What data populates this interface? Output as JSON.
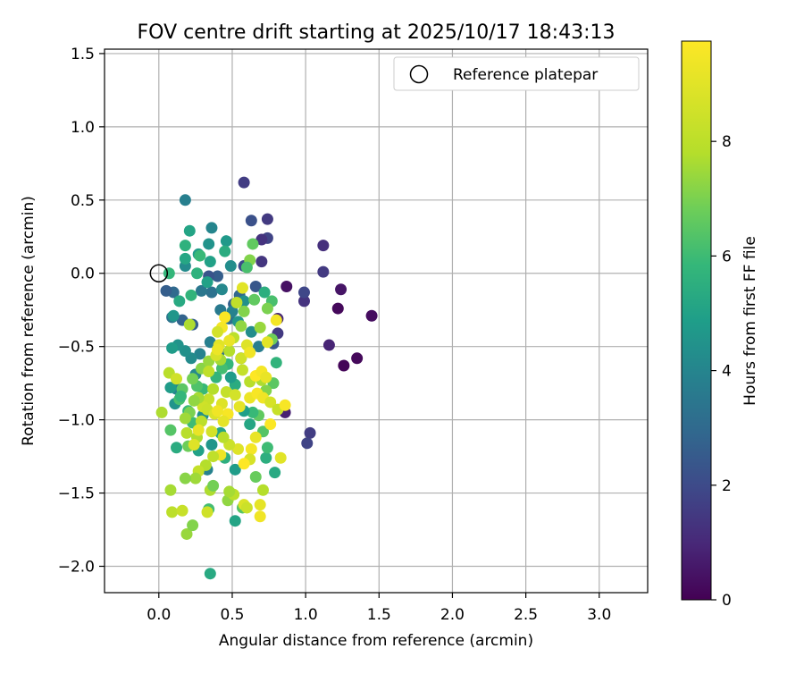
{
  "chart_data": {
    "type": "scatter",
    "title": "FOV centre drift starting at 2025/10/17 18:43:13",
    "xlabel": "Angular distance from reference (arcmin)",
    "ylabel": "Rotation from reference (arcmin)",
    "xlim": [
      -0.37,
      3.33
    ],
    "ylim": [
      -2.18,
      1.53
    ],
    "xticks": [
      0.0,
      0.5,
      1.0,
      1.5,
      2.0,
      2.5,
      3.0
    ],
    "xtick_labels": [
      "0.0",
      "0.5",
      "1.0",
      "1.5",
      "2.0",
      "2.5",
      "3.0"
    ],
    "yticks": [
      1.5,
      1.0,
      0.5,
      0.0,
      -0.5,
      -1.0,
      -1.5,
      -2.0
    ],
    "ytick_labels": [
      "1.5",
      "1.0",
      "0.5",
      "0.0",
      "−0.5",
      "−1.0",
      "−1.5",
      "−2.0"
    ],
    "grid": true,
    "legend": {
      "placement": "top-right",
      "entries": [
        "Reference platepar"
      ]
    },
    "colorbar": {
      "label": "Hours from first FF file",
      "range": [
        0,
        9.75
      ],
      "colormap": "viridis",
      "ticks": [
        0,
        2,
        4,
        6,
        8
      ],
      "tick_labels": [
        "0",
        "2",
        "4",
        "6",
        "8"
      ]
    },
    "reference_point": {
      "x": 0.0,
      "y": 0.0
    },
    "point_columns": [
      "x",
      "y",
      "hours"
    ],
    "points": [
      [
        1.45,
        -0.29,
        0.3
      ],
      [
        1.35,
        -0.58,
        0.2
      ],
      [
        1.26,
        -0.63,
        0.1
      ],
      [
        1.22,
        -0.24,
        0.2
      ],
      [
        1.24,
        -0.11,
        0.5
      ],
      [
        1.16,
        -0.49,
        0.9
      ],
      [
        1.12,
        0.19,
        1.2
      ],
      [
        1.12,
        0.01,
        1.5
      ],
      [
        0.87,
        -0.09,
        0.4
      ],
      [
        0.86,
        -0.95,
        0.8
      ],
      [
        0.99,
        -0.19,
        1.3
      ],
      [
        1.03,
        -1.09,
        1.6
      ],
      [
        1.01,
        -1.16,
        1.8
      ],
      [
        0.99,
        -0.13,
        1.9
      ],
      [
        0.58,
        0.62,
        1.6
      ],
      [
        0.74,
        0.37,
        1.5
      ],
      [
        0.74,
        0.24,
        1.8
      ],
      [
        0.7,
        0.23,
        1.3
      ],
      [
        0.63,
        0.36,
        2.2
      ],
      [
        0.58,
        0.05,
        2.0
      ],
      [
        0.7,
        0.08,
        1.4
      ],
      [
        0.81,
        -0.31,
        1.0
      ],
      [
        0.81,
        -0.41,
        1.5
      ],
      [
        0.78,
        -0.48,
        2.4
      ],
      [
        0.66,
        -0.09,
        2.4
      ],
      [
        0.55,
        -0.15,
        2.9
      ],
      [
        0.51,
        -0.21,
        2.7
      ],
      [
        0.48,
        -0.31,
        3.2
      ],
      [
        0.4,
        -0.02,
        2.6
      ],
      [
        0.36,
        -0.13,
        3.3
      ],
      [
        0.34,
        -0.02,
        2.3
      ],
      [
        0.29,
        -0.12,
        3.5
      ],
      [
        0.23,
        -0.35,
        2.6
      ],
      [
        0.16,
        -0.32,
        2.8
      ],
      [
        0.1,
        -0.13,
        3.0
      ],
      [
        0.05,
        -0.12,
        2.6
      ],
      [
        0.09,
        -0.3,
        3.4
      ],
      [
        0.18,
        0.5,
        3.8
      ],
      [
        0.36,
        0.31,
        4.0
      ],
      [
        0.46,
        0.22,
        4.7
      ],
      [
        0.49,
        0.05,
        4.3
      ],
      [
        0.35,
        0.08,
        5.0
      ],
      [
        0.27,
        0.13,
        4.8
      ],
      [
        0.18,
        0.05,
        4.2
      ],
      [
        0.18,
        0.1,
        5.2
      ],
      [
        0.21,
        0.29,
        5.1
      ],
      [
        0.18,
        0.19,
        5.6
      ],
      [
        0.07,
        0.0,
        5.8
      ],
      [
        0.1,
        -0.29,
        4.6
      ],
      [
        0.14,
        -0.19,
        5.3
      ],
      [
        0.22,
        -0.15,
        5.7
      ],
      [
        0.26,
        0.0,
        5.6
      ],
      [
        0.33,
        -0.06,
        5.0
      ],
      [
        0.43,
        -0.11,
        4.1
      ],
      [
        0.42,
        -0.25,
        3.6
      ],
      [
        0.5,
        -0.26,
        3.9
      ],
      [
        0.58,
        -0.19,
        4.4
      ],
      [
        0.54,
        -0.33,
        4.6
      ],
      [
        0.63,
        -0.4,
        4.3
      ],
      [
        0.68,
        -0.5,
        3.7
      ],
      [
        0.56,
        -0.58,
        3.4
      ],
      [
        0.41,
        -0.54,
        3.2
      ],
      [
        0.35,
        -0.47,
        3.8
      ],
      [
        0.28,
        -0.55,
        3.9
      ],
      [
        0.22,
        -0.58,
        4.2
      ],
      [
        0.18,
        -0.53,
        4.4
      ],
      [
        0.13,
        -0.49,
        4.5
      ],
      [
        0.09,
        -0.51,
        4.8
      ],
      [
        0.25,
        -0.69,
        4.1
      ],
      [
        0.12,
        -0.79,
        3.9
      ],
      [
        0.08,
        -0.78,
        4.8
      ],
      [
        0.11,
        -0.89,
        4.5
      ],
      [
        0.3,
        -0.97,
        4.4
      ],
      [
        0.33,
        -1.34,
        3.9
      ],
      [
        0.36,
        -1.17,
        4.6
      ],
      [
        0.42,
        -1.09,
        5.1
      ],
      [
        0.52,
        -1.34,
        4.8
      ],
      [
        0.45,
        -1.26,
        5.5
      ],
      [
        0.27,
        -1.21,
        5.0
      ],
      [
        0.2,
        -0.94,
        5.9
      ],
      [
        0.14,
        -0.86,
        6.2
      ],
      [
        0.16,
        -0.79,
        6.5
      ],
      [
        0.15,
        -0.84,
        5.8
      ],
      [
        0.23,
        -1.02,
        6.0
      ],
      [
        0.12,
        -1.19,
        5.4
      ],
      [
        0.2,
        -1.18,
        6.8
      ],
      [
        0.34,
        -1.61,
        6.1
      ],
      [
        0.35,
        -2.05,
        5.3
      ],
      [
        0.52,
        -1.69,
        5.1
      ],
      [
        0.57,
        -1.6,
        6.4
      ],
      [
        0.66,
        -1.39,
        6.7
      ],
      [
        0.73,
        -1.26,
        5.5
      ],
      [
        0.79,
        -1.36,
        5.3
      ],
      [
        0.74,
        -1.19,
        6.0
      ],
      [
        0.71,
        -1.08,
        6.4
      ],
      [
        0.68,
        -0.97,
        6.6
      ],
      [
        0.64,
        -0.95,
        5.9
      ],
      [
        0.62,
        -1.03,
        5.2
      ],
      [
        0.58,
        -0.94,
        4.9
      ],
      [
        0.52,
        -0.76,
        5.4
      ],
      [
        0.49,
        -0.71,
        4.8
      ],
      [
        0.47,
        -0.62,
        5.8
      ],
      [
        0.43,
        -0.65,
        6.1
      ],
      [
        0.39,
        -0.71,
        5.7
      ],
      [
        0.3,
        -0.79,
        5.9
      ],
      [
        0.26,
        -0.77,
        6.3
      ],
      [
        0.23,
        -0.72,
        6.9
      ],
      [
        0.29,
        -0.65,
        7.2
      ],
      [
        0.34,
        -0.6,
        7.4
      ],
      [
        0.42,
        -0.59,
        7.6
      ],
      [
        0.48,
        -0.53,
        7.8
      ],
      [
        0.51,
        -0.44,
        8.0
      ],
      [
        0.56,
        -0.36,
        7.3
      ],
      [
        0.58,
        -0.26,
        7.1
      ],
      [
        0.65,
        -0.18,
        6.6
      ],
      [
        0.72,
        -0.13,
        5.5
      ],
      [
        0.77,
        -0.19,
        6.2
      ],
      [
        0.74,
        -0.24,
        7.0
      ],
      [
        0.69,
        -0.37,
        7.4
      ],
      [
        0.77,
        -0.45,
        6.8
      ],
      [
        0.8,
        -0.61,
        5.7
      ],
      [
        0.78,
        -0.75,
        6.5
      ],
      [
        0.73,
        -0.8,
        7.1
      ],
      [
        0.7,
        -0.73,
        7.7
      ],
      [
        0.62,
        -0.74,
        7.9
      ],
      [
        0.57,
        -0.66,
        8.2
      ],
      [
        0.56,
        -0.58,
        8.5
      ],
      [
        0.6,
        -0.49,
        8.9
      ],
      [
        0.48,
        -0.46,
        9.2
      ],
      [
        0.43,
        -0.37,
        9.5
      ],
      [
        0.45,
        -0.3,
        9.7
      ],
      [
        0.4,
        -0.4,
        8.6
      ],
      [
        0.41,
        -0.49,
        9.0
      ],
      [
        0.39,
        -0.56,
        8.7
      ],
      [
        0.34,
        -0.67,
        8.1
      ],
      [
        0.37,
        -0.79,
        7.8
      ],
      [
        0.34,
        -0.86,
        8.3
      ],
      [
        0.3,
        -0.91,
        8.5
      ],
      [
        0.27,
        -0.85,
        7.6
      ],
      [
        0.24,
        -0.87,
        7.3
      ],
      [
        0.21,
        -0.95,
        7.0
      ],
      [
        0.18,
        -0.99,
        7.5
      ],
      [
        0.19,
        -1.09,
        7.9
      ],
      [
        0.26,
        -1.12,
        7.7
      ],
      [
        0.29,
        -1.01,
        8.0
      ],
      [
        0.33,
        -0.93,
        8.4
      ],
      [
        0.38,
        -0.96,
        8.8
      ],
      [
        0.43,
        -0.89,
        8.9
      ],
      [
        0.46,
        -0.81,
        8.2
      ],
      [
        0.52,
        -0.83,
        8.6
      ],
      [
        0.55,
        -0.91,
        9.1
      ],
      [
        0.62,
        -0.85,
        9.3
      ],
      [
        0.67,
        -0.82,
        9.6
      ],
      [
        0.71,
        -0.85,
        9.4
      ],
      [
        0.66,
        -0.7,
        9.8
      ],
      [
        0.7,
        -0.67,
        9.5
      ],
      [
        0.73,
        -0.71,
        9.2
      ],
      [
        0.76,
        -0.88,
        8.7
      ],
      [
        0.81,
        -0.93,
        8.3
      ],
      [
        0.86,
        -0.9,
        9.6
      ],
      [
        0.83,
        -1.26,
        9.0
      ],
      [
        0.76,
        -1.03,
        9.7
      ],
      [
        0.66,
        -1.12,
        9.2
      ],
      [
        0.63,
        -1.2,
        9.5
      ],
      [
        0.62,
        -1.27,
        8.7
      ],
      [
        0.58,
        -1.3,
        9.8
      ],
      [
        0.54,
        -1.2,
        8.9
      ],
      [
        0.48,
        -1.17,
        8.4
      ],
      [
        0.44,
        -1.12,
        7.9
      ],
      [
        0.42,
        -1.24,
        9.3
      ],
      [
        0.37,
        -1.25,
        8.1
      ],
      [
        0.32,
        -1.31,
        7.8
      ],
      [
        0.27,
        -1.35,
        8.2
      ],
      [
        0.25,
        -1.4,
        7.5
      ],
      [
        0.18,
        -1.4,
        7.2
      ],
      [
        0.08,
        -1.48,
        7.6
      ],
      [
        0.09,
        -1.63,
        8.0
      ],
      [
        0.16,
        -1.62,
        8.3
      ],
      [
        0.19,
        -1.78,
        7.4
      ],
      [
        0.23,
        -1.72,
        7.1
      ],
      [
        0.33,
        -1.63,
        8.5
      ],
      [
        0.35,
        -1.48,
        7.7
      ],
      [
        0.37,
        -1.45,
        6.9
      ],
      [
        0.47,
        -1.55,
        7.3
      ],
      [
        0.51,
        -1.51,
        8.0
      ],
      [
        0.48,
        -1.49,
        7.6
      ],
      [
        0.58,
        -1.58,
        8.8
      ],
      [
        0.6,
        -1.6,
        8.4
      ],
      [
        0.69,
        -1.58,
        9.1
      ],
      [
        0.71,
        -1.48,
        7.8
      ],
      [
        0.69,
        -1.66,
        9.4
      ],
      [
        0.47,
        -0.96,
        9.6
      ],
      [
        0.44,
        -1.01,
        9.1
      ],
      [
        0.4,
        -0.94,
        9.4
      ],
      [
        0.36,
        -1.08,
        8.6
      ],
      [
        0.27,
        -1.07,
        9.2
      ],
      [
        0.24,
        -1.17,
        8.9
      ],
      [
        0.02,
        -0.95,
        7.7
      ],
      [
        0.08,
        -1.07,
        6.4
      ],
      [
        0.07,
        -0.68,
        7.9
      ],
      [
        0.12,
        -0.72,
        8.5
      ],
      [
        0.21,
        -0.35,
        7.7
      ],
      [
        0.4,
        -0.52,
        9.3
      ],
      [
        0.62,
        -0.54,
        9.4
      ],
      [
        0.74,
        -0.47,
        9.0
      ],
      [
        0.8,
        -0.32,
        9.5
      ],
      [
        0.57,
        -0.1,
        9.0
      ],
      [
        0.53,
        -0.2,
        8.1
      ],
      [
        0.62,
        0.09,
        7.1
      ],
      [
        0.64,
        0.2,
        6.6
      ],
      [
        0.6,
        0.04,
        6.2
      ],
      [
        0.45,
        0.15,
        5.4
      ],
      [
        0.34,
        0.2,
        4.5
      ],
      [
        0.28,
        0.12,
        5.9
      ]
    ]
  }
}
